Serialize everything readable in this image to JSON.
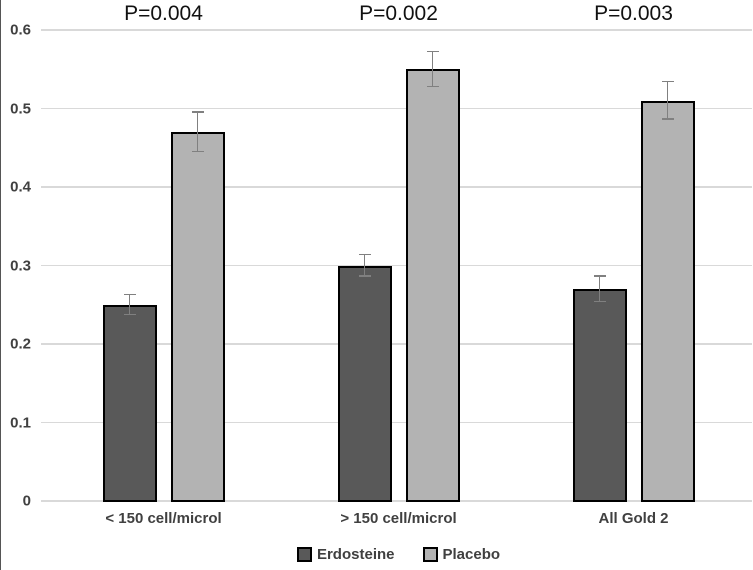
{
  "chart_data": {
    "type": "bar",
    "title": "",
    "categories": [
      "< 150 cell/microl",
      "> 150 cell/microl",
      "All Gold 2"
    ],
    "series": [
      {
        "name": "Erdosteine",
        "color": "#595959",
        "values": [
          0.25,
          0.3,
          0.27
        ],
        "errors": [
          0.013,
          0.014,
          0.016
        ]
      },
      {
        "name": "Placebo",
        "color": "#b3b3b3",
        "values": [
          0.47,
          0.55,
          0.51
        ],
        "errors": [
          0.025,
          0.022,
          0.024
        ]
      }
    ],
    "p_values": [
      "P=0.004",
      "P=0.002",
      "P=0.003"
    ],
    "ylim": [
      0,
      0.6
    ],
    "ytick_step": 0.1,
    "yticks": [
      "0",
      "0.1",
      "0.2",
      "0.3",
      "0.4",
      "0.5",
      "0.6"
    ],
    "grid": true,
    "legend_position": "bottom",
    "colors": {
      "bar_border": "#000000",
      "gridline": "#d9d9d9",
      "error_bar": "#808080",
      "axis_label": "#404040",
      "p_value_text": "#111111"
    }
  }
}
